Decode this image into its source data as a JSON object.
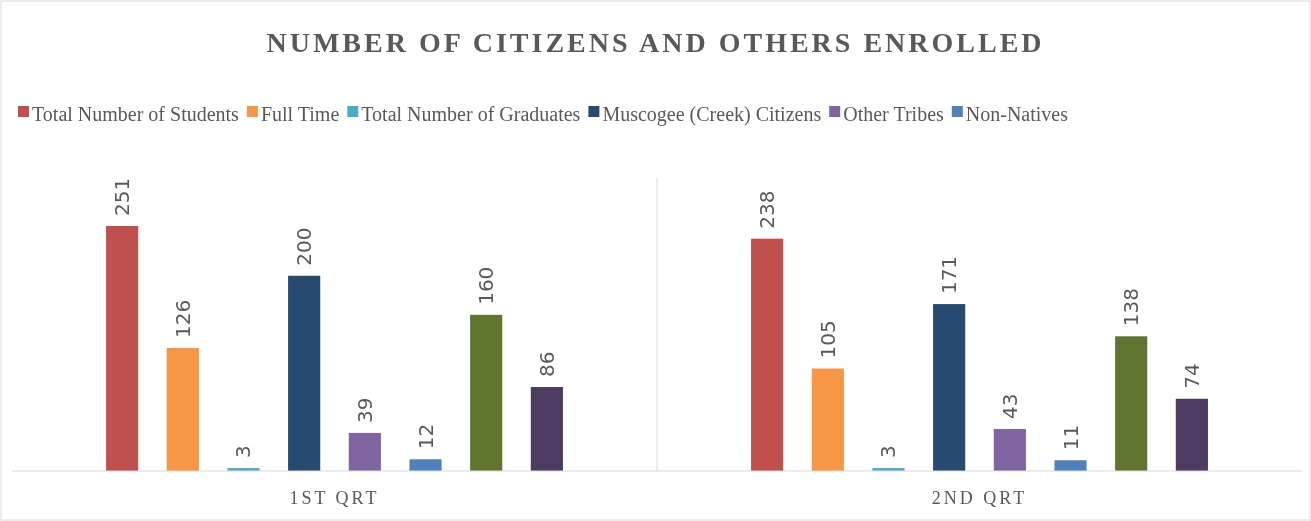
{
  "chart_data": {
    "type": "bar",
    "title": "NUMBER OF CITIZENS AND OTHERS ENROLLED",
    "categories": [
      "1ST QRT",
      "2ND QRT"
    ],
    "series": [
      {
        "name": "Total Number of Students",
        "color": "#c0504d",
        "values": [
          251,
          238
        ]
      },
      {
        "name": "Full Time",
        "color": "#f79646",
        "values": [
          126,
          105
        ]
      },
      {
        "name": "Total Number of Graduates",
        "color": "#4bacc6",
        "values": [
          3,
          3
        ]
      },
      {
        "name": "Muscogee (Creek) Citizens",
        "color": "#264a70",
        "values": [
          200,
          171
        ]
      },
      {
        "name": "Other Tribes",
        "color": "#8064a2",
        "values": [
          39,
          43
        ]
      },
      {
        "name": "Non-Natives",
        "color": "#4f81bd",
        "values": [
          12,
          11
        ]
      },
      {
        "color": "#5f7530",
        "values": [
          160,
          138
        ]
      },
      {
        "color": "#4d3b62",
        "values": [
          86,
          74
        ]
      }
    ],
    "data_labels": true,
    "legend": "top"
  }
}
